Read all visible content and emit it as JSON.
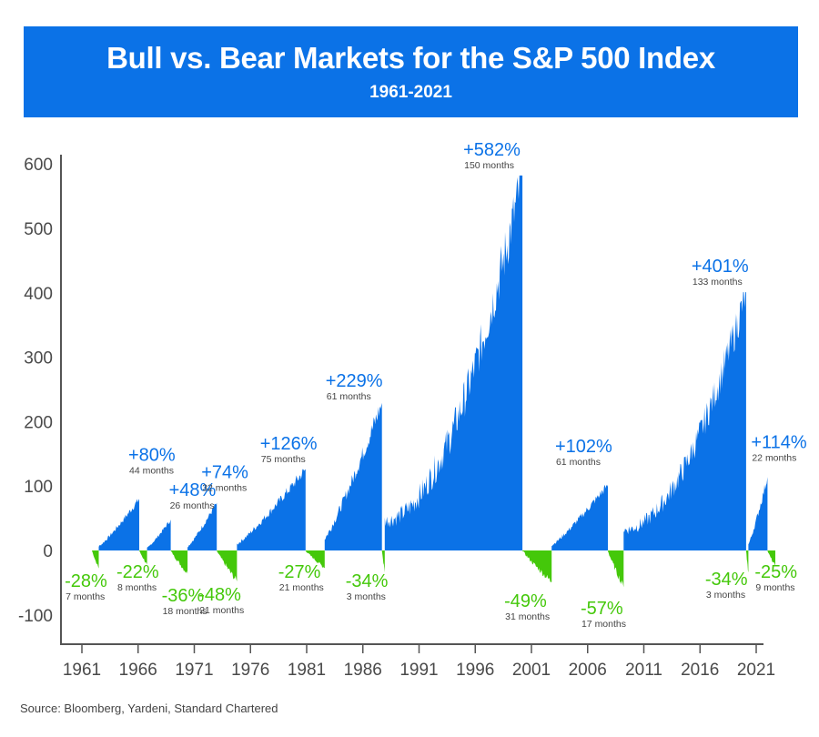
{
  "header": {
    "title": "Bull vs. Bear Markets for the S&P 500 Index",
    "subtitle": "1961-2021"
  },
  "source": "Source: Bloomberg, Yardeni, Standard Chartered",
  "colors": {
    "banner": "#0b72e7",
    "bull": "#0b72e7",
    "bear": "#44c80a",
    "axis": "#555555",
    "text": "#444444"
  },
  "chart_data": {
    "type": "area",
    "title": "Bull vs. Bear Markets for the S&P 500 Index",
    "subtitle": "1961-2021",
    "xlabel": "",
    "ylabel": "",
    "xlim": [
      1959.9,
      2022.5
    ],
    "ylim": [
      -150,
      610
    ],
    "x_ticks": [
      "1961",
      "1966",
      "1971",
      "1976",
      "1981",
      "1986",
      "1991",
      "1996",
      "2001",
      "2006",
      "2011",
      "2016",
      "2021"
    ],
    "y_ticks": [
      "600",
      "500",
      "400",
      "300",
      "200",
      "100",
      "0",
      "-100"
    ],
    "y_tick_values": [
      600,
      500,
      400,
      300,
      200,
      100,
      0,
      -100
    ],
    "grid": false,
    "legend": "none",
    "series": [
      {
        "name": "Bear",
        "kind": "bear",
        "start": 1961.9,
        "end": 1962.5,
        "change_pct": -28,
        "duration": "7 months"
      },
      {
        "name": "Bull",
        "kind": "bull",
        "start": 1962.5,
        "end": 1966.1,
        "change_pct": 80,
        "duration": "44 months"
      },
      {
        "name": "Bear",
        "kind": "bear",
        "start": 1966.1,
        "end": 1966.8,
        "change_pct": -22,
        "duration": "8 months"
      },
      {
        "name": "Bull",
        "kind": "bull",
        "start": 1966.8,
        "end": 1968.9,
        "change_pct": 48,
        "duration": "26 months"
      },
      {
        "name": "Bear",
        "kind": "bear",
        "start": 1968.9,
        "end": 1970.4,
        "change_pct": -36,
        "duration": "18 months"
      },
      {
        "name": "Bull",
        "kind": "bull",
        "start": 1970.4,
        "end": 1973.0,
        "change_pct": 74,
        "duration": "32 months"
      },
      {
        "name": "Bear",
        "kind": "bear",
        "start": 1973.0,
        "end": 1974.8,
        "change_pct": -48,
        "duration": "21 months"
      },
      {
        "name": "Bull",
        "kind": "bull",
        "start": 1974.8,
        "end": 1980.9,
        "change_pct": 126,
        "duration": "75 months"
      },
      {
        "name": "Bear",
        "kind": "bear",
        "start": 1980.9,
        "end": 1982.6,
        "change_pct": -27,
        "duration": "21 months"
      },
      {
        "name": "Bull",
        "kind": "bull",
        "start": 1982.6,
        "end": 1987.7,
        "change_pct": 229,
        "duration": "61 months"
      },
      {
        "name": "Bear",
        "kind": "bear",
        "start": 1987.7,
        "end": 1987.95,
        "change_pct": -34,
        "duration": "3 months"
      },
      {
        "name": "Bull",
        "kind": "bull",
        "start": 1987.95,
        "end": 2000.2,
        "change_pct": 582,
        "duration": "150 months"
      },
      {
        "name": "Bear",
        "kind": "bear",
        "start": 2000.2,
        "end": 2002.8,
        "change_pct": -49,
        "duration": "31 months"
      },
      {
        "name": "Bull",
        "kind": "bull",
        "start": 2002.8,
        "end": 2007.8,
        "change_pct": 102,
        "duration": "61 months"
      },
      {
        "name": "Bear",
        "kind": "bear",
        "start": 2007.8,
        "end": 2009.2,
        "change_pct": -57,
        "duration": "17 months"
      },
      {
        "name": "Bull",
        "kind": "bull",
        "start": 2009.2,
        "end": 2020.1,
        "change_pct": 401,
        "duration": "133 months"
      },
      {
        "name": "Bear",
        "kind": "bear",
        "start": 2020.1,
        "end": 2020.3,
        "change_pct": -34,
        "duration": "3 months"
      },
      {
        "name": "Bull",
        "kind": "bull",
        "start": 2020.3,
        "end": 2022.0,
        "change_pct": 114,
        "duration": "22 months"
      },
      {
        "name": "Bear",
        "kind": "bear",
        "start": 2022.0,
        "end": 2022.7,
        "change_pct": -25,
        "duration": "9 months"
      }
    ]
  }
}
